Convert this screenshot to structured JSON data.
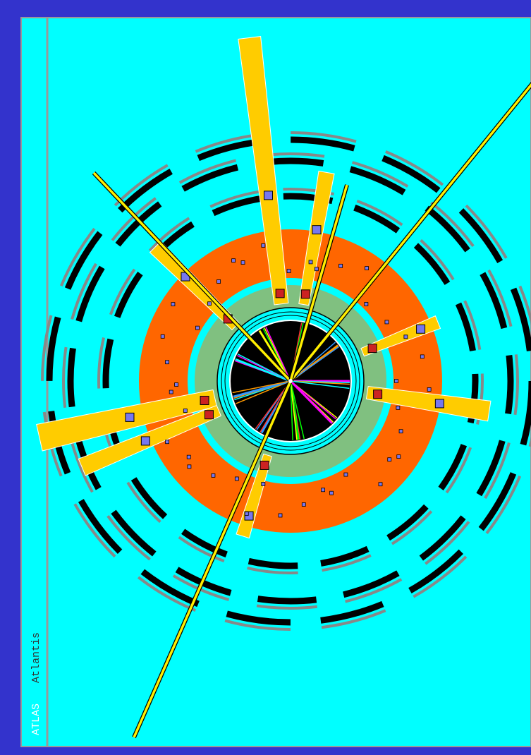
{
  "labels": {
    "experiment": "ATLAS",
    "software": "Atlantis"
  }
}
